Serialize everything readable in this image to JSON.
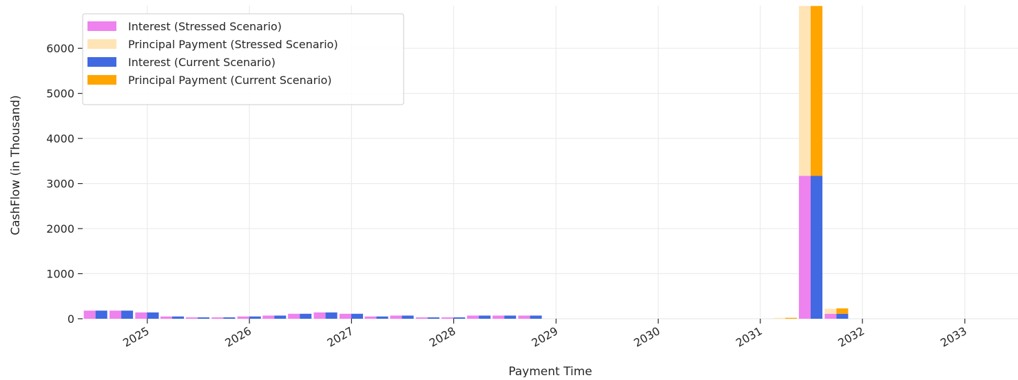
{
  "chart_data": {
    "type": "bar",
    "title": "",
    "xlabel": "Payment Time",
    "ylabel": "CashFlow (in Thousand)",
    "ylim": [
      0,
      6950
    ],
    "xlim": [
      "2024-05-15",
      "2033-07-10"
    ],
    "grid": true,
    "legend_position": "top-left",
    "x_ticks": [
      {
        "label": "2025",
        "date": "2025-01-01"
      },
      {
        "label": "2026",
        "date": "2026-01-01"
      },
      {
        "label": "2027",
        "date": "2027-01-01"
      },
      {
        "label": "2028",
        "date": "2028-01-01"
      },
      {
        "label": "2029",
        "date": "2029-01-01"
      },
      {
        "label": "2030",
        "date": "2030-01-01"
      },
      {
        "label": "2031",
        "date": "2031-01-01"
      },
      {
        "label": "2032",
        "date": "2032-01-01"
      },
      {
        "label": "2033",
        "date": "2033-01-01"
      }
    ],
    "y_ticks": [
      0,
      1000,
      2000,
      3000,
      4000,
      5000,
      6000
    ],
    "dates": [
      "2024-06-30",
      "2024-09-30",
      "2024-12-31",
      "2025-03-31",
      "2025-06-30",
      "2025-09-30",
      "2025-12-31",
      "2026-03-31",
      "2026-06-30",
      "2026-09-30",
      "2026-12-31",
      "2027-03-31",
      "2027-06-30",
      "2027-09-30",
      "2027-12-31",
      "2028-03-31",
      "2028-06-30",
      "2028-09-30",
      "2031-03-31",
      "2031-06-30",
      "2031-09-30"
    ],
    "series": [
      {
        "name": "Interest (Stressed Scenario)",
        "group": "stressed",
        "color": "#ee82ee",
        "values": [
          180,
          180,
          140,
          50,
          30,
          30,
          50,
          70,
          110,
          140,
          110,
          50,
          70,
          30,
          30,
          70,
          70,
          70,
          0,
          3170,
          110
        ]
      },
      {
        "name": "Principal Payment (Stressed Scenario)",
        "group": "stressed",
        "color": "#ffe4b5",
        "values": [
          0,
          0,
          0,
          0,
          0,
          0,
          0,
          0,
          0,
          0,
          0,
          0,
          0,
          0,
          0,
          0,
          0,
          0,
          20,
          3770,
          110
        ]
      },
      {
        "name": "Interest (Current Scenario)",
        "group": "current",
        "color": "#4169e1",
        "values": [
          180,
          180,
          140,
          50,
          30,
          30,
          50,
          70,
          110,
          140,
          110,
          50,
          70,
          30,
          30,
          70,
          70,
          70,
          0,
          3170,
          110
        ]
      },
      {
        "name": "Principal Payment (Current Scenario)",
        "group": "current",
        "color": "#ffa500",
        "values": [
          0,
          0,
          0,
          0,
          0,
          0,
          0,
          0,
          0,
          0,
          0,
          0,
          0,
          0,
          0,
          0,
          0,
          0,
          20,
          3770,
          120
        ]
      }
    ]
  }
}
